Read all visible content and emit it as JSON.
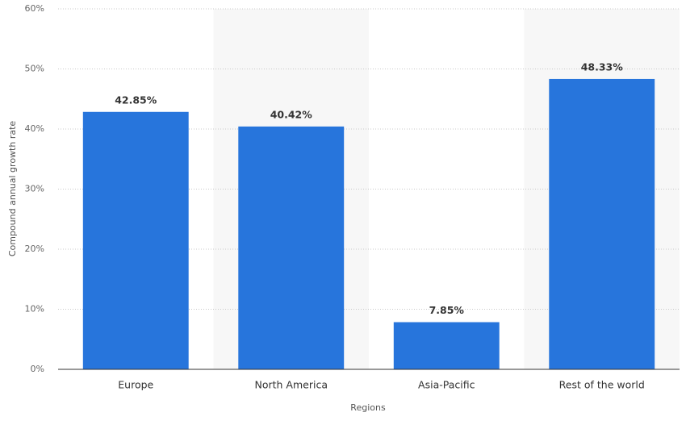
{
  "chart_data": {
    "type": "bar",
    "x_label": "Regions",
    "y_label": "Compound annual growth rate",
    "categories": [
      "Europe",
      "North America",
      "Asia-Pacific",
      "Rest of the world"
    ],
    "values": [
      42.85,
      40.42,
      7.85,
      48.33
    ],
    "value_labels": [
      "42.85%",
      "40.42%",
      "7.85%",
      "48.33%"
    ],
    "color": "#2775dc",
    "ylim": [
      0,
      60
    ],
    "yticks": [
      {
        "value": 0,
        "label": "0%"
      },
      {
        "value": 10,
        "label": "10%"
      },
      {
        "value": 20,
        "label": "20%"
      },
      {
        "value": 30,
        "label": "30%"
      },
      {
        "value": 40,
        "label": "40%"
      },
      {
        "value": 50,
        "label": "50%"
      },
      {
        "value": 60,
        "label": "60%"
      }
    ],
    "grid": true
  }
}
